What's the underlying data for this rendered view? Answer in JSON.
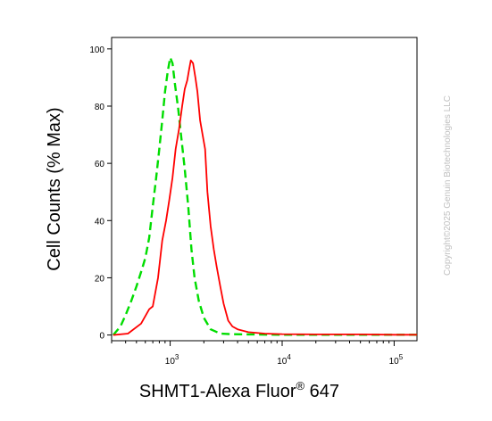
{
  "chart_data": {
    "type": "line",
    "xlabel": "SHMT1-Alexa Fluor",
    "xlabel_sup": "®",
    "xlabel_suffix": " 647",
    "ylabel": "Cell Counts (% Max)",
    "x_scale": "log",
    "xlim": [
      300,
      160000
    ],
    "ylim": [
      -2,
      104
    ],
    "y_ticks": [
      0,
      20,
      40,
      60,
      80,
      100
    ],
    "x_ticks": [
      {
        "base": "10",
        "exp": "3",
        "value": 1000
      },
      {
        "base": "10",
        "exp": "4",
        "value": 10000
      },
      {
        "base": "10",
        "exp": "5",
        "value": 100000
      }
    ],
    "grid": false,
    "series": [
      {
        "color": "#ff0000",
        "style": "solid",
        "x": [
          310,
          420,
          550,
          650,
          700,
          780,
          850,
          920,
          980,
          1050,
          1120,
          1200,
          1280,
          1350,
          1420,
          1480,
          1530,
          1600,
          1680,
          1750,
          1850,
          1950,
          2050,
          2150,
          2300,
          2450,
          2600,
          2800,
          3000,
          3300,
          3600,
          4000,
          5000,
          7000,
          10000,
          20000,
          50000,
          100000,
          160000
        ],
        "y": [
          0,
          0.5,
          4,
          9,
          10,
          20,
          33,
          40,
          47,
          55,
          65,
          72,
          80,
          86,
          89,
          93,
          96,
          95,
          90,
          85,
          75,
          70,
          65,
          50,
          38,
          30,
          24,
          17,
          11,
          5,
          3,
          2,
          1,
          0.5,
          0.3,
          0.2,
          0.2,
          0.1,
          0.1
        ]
      },
      {
        "color": "#00dd00",
        "style": "dashed",
        "x": [
          310,
          360,
          400,
          450,
          500,
          560,
          600,
          650,
          700,
          750,
          800,
          850,
          900,
          950,
          1000,
          1050,
          1100,
          1180,
          1250,
          1350,
          1450,
          1550,
          1650,
          1800,
          2000,
          2300,
          2800,
          3500,
          5000,
          10000,
          50000,
          160000
        ],
        "y": [
          0,
          3,
          7,
          12,
          17,
          23,
          27,
          34,
          45,
          55,
          65,
          75,
          85,
          92,
          97,
          95,
          88,
          79,
          70,
          58,
          45,
          30,
          20,
          12,
          6,
          2,
          0.5,
          0.3,
          0.2,
          0.1,
          0.1,
          0.1
        ]
      }
    ]
  },
  "watermark": "Copyright©2025 Genuin Biotechnologies LLC"
}
